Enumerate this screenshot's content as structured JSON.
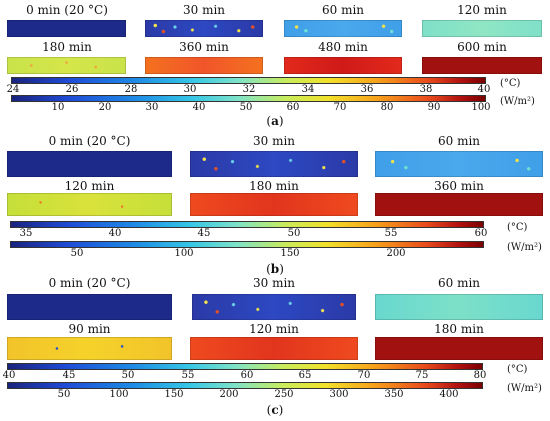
{
  "panels": [
    {
      "caption": "(a)",
      "captionBold": "a",
      "time_labels": [
        "0 min (20 °C)",
        "30 min",
        "60 min",
        "120 min",
        "180 min",
        "360 min",
        "480 min",
        "600 min"
      ],
      "temp_ticks": [
        "24",
        "26",
        "28",
        "30",
        "32",
        "34",
        "36",
        "38",
        "40"
      ],
      "temp_unit": "(°C)",
      "flux_ticks": [
        "10",
        "20",
        "30",
        "40",
        "50",
        "60",
        "70",
        "80",
        "90",
        "100"
      ],
      "flux_unit": "(W/m²)"
    },
    {
      "caption": "(b)",
      "time_labels": [
        "0 min (20 °C)",
        "30 min",
        "60 min",
        "120 min",
        "180 min",
        "360 min"
      ],
      "temp_ticks": [
        "35",
        "40",
        "45",
        "50",
        "55",
        "60"
      ],
      "temp_unit": "(°C)",
      "flux_ticks": [
        "50",
        "100",
        "150",
        "200"
      ],
      "flux_unit": "(W/m²)"
    },
    {
      "caption": "(c)",
      "time_labels": [
        "0 min (20 °C)",
        "30 min",
        "60 min",
        "90 min",
        "120 min",
        "180 min"
      ],
      "temp_ticks": [
        "40",
        "45",
        "50",
        "55",
        "60",
        "65",
        "70",
        "75",
        "80"
      ],
      "temp_unit": "(°C)",
      "flux_ticks": [
        "50",
        "100",
        "150",
        "200",
        "250",
        "300",
        "350",
        "400"
      ],
      "flux_unit": "(W/m²)"
    }
  ]
}
